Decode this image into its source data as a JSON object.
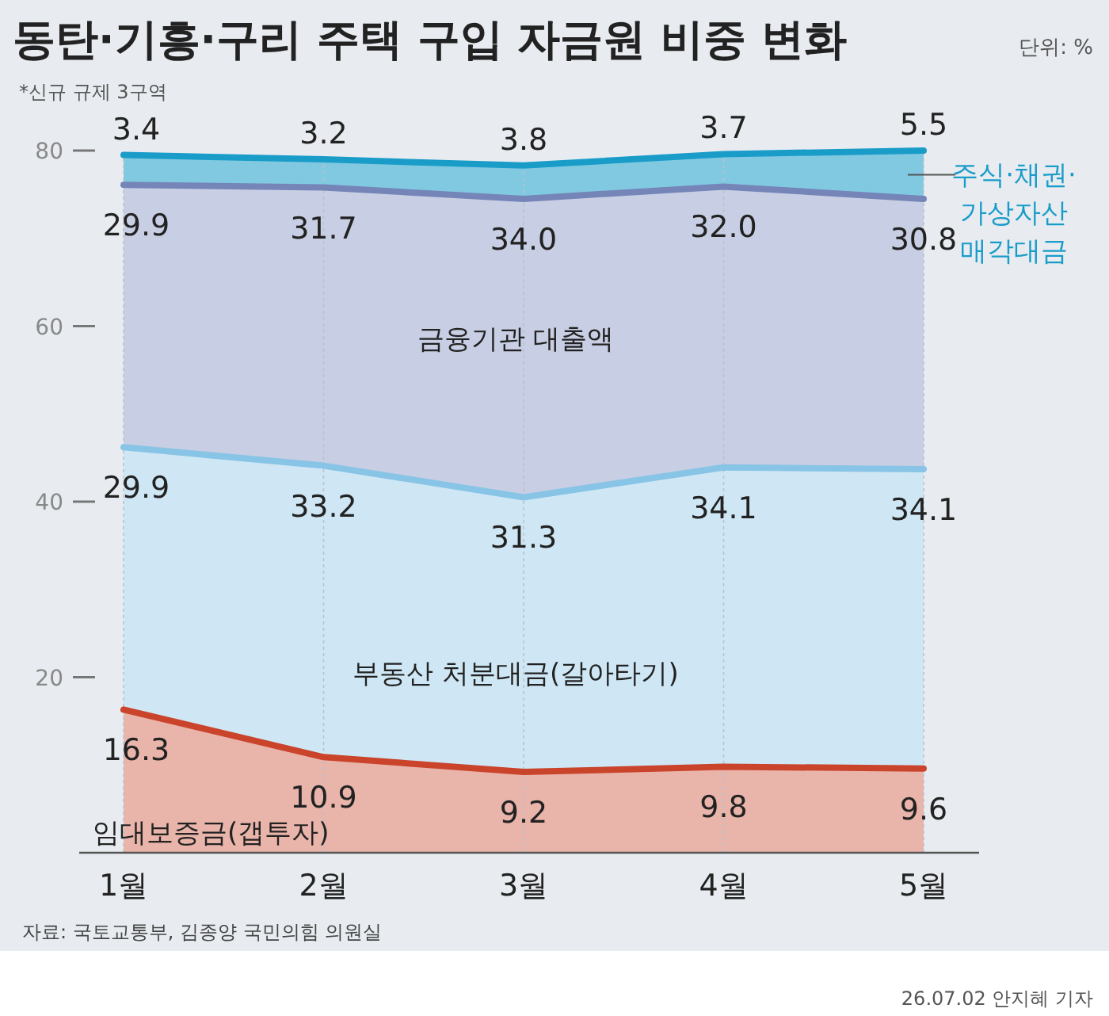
{
  "chart_data": {
    "type": "area",
    "stacked": true,
    "title": "동탄·기흥·구리 주택 구입 자금원 비중 변화",
    "subtitle": "*신규 규제 3구역",
    "categories": [
      "1월",
      "2월",
      "3월",
      "4월",
      "5월"
    ],
    "series": [
      {
        "name": "임대보증금(갭투자)",
        "color": "#c9442b",
        "values": [
          16.3,
          10.9,
          9.2,
          9.8,
          9.6
        ]
      },
      {
        "name": "부동산 처분대금(갈아타기)",
        "color": "#88c4e6",
        "values": [
          29.9,
          33.2,
          31.3,
          34.1,
          34.1
        ]
      },
      {
        "name": "금융기관 대출액",
        "color": "#7585b8",
        "values": [
          29.9,
          31.7,
          34.0,
          32.0,
          30.8
        ],
        "value_labels": [
          "29.9",
          "31.7",
          "34.0",
          "32.0",
          "30.8"
        ]
      },
      {
        "name": "주식·채권·가상자산 매각대금",
        "color": "#1a9cc9",
        "values": [
          3.4,
          3.2,
          3.8,
          3.7,
          5.5
        ]
      }
    ],
    "ylim": [
      0,
      80
    ],
    "yticks": [
      20,
      40,
      60,
      80
    ],
    "grid": "x",
    "data_labels": true,
    "annotations": [
      "단위: %",
      "자료: 국토교통부, 김종양 국민의힘 의원실",
      "26.07.02 안지혜 기자"
    ]
  }
}
